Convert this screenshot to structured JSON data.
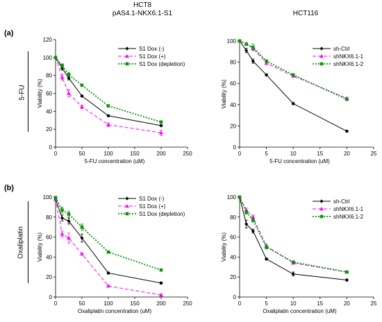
{
  "header": {
    "left_line1": "HCT8",
    "left_line2": "pAS4.1-NKX6.1-S1",
    "right": "HCT116"
  },
  "rows": [
    {
      "panel": "(a)",
      "label": "5-FU"
    },
    {
      "panel": "(b)",
      "label": "Oxaliplatin"
    }
  ],
  "chart_data": [
    {
      "type": "line",
      "id": "a-left",
      "xlabel": "5-FU concentration (uM)",
      "ylabel": "Viability (%)",
      "xlim": [
        0,
        250
      ],
      "xticks": [
        0,
        50,
        100,
        150,
        200,
        250
      ],
      "ylim": [
        0,
        120
      ],
      "yticks": [
        0,
        20,
        40,
        60,
        80,
        100,
        120
      ],
      "legend_position": "top-right",
      "series": [
        {
          "name": "S1 Dox (-)",
          "color": "#000000",
          "style": "solid",
          "marker": "diamond",
          "x": [
            0,
            12.5,
            25,
            50,
            100,
            200
          ],
          "y": [
            100,
            88,
            77,
            57,
            35,
            24
          ],
          "err": [
            1,
            2,
            2,
            1,
            1,
            1
          ]
        },
        {
          "name": "S1 Dox (+)",
          "color": "#ff00ff",
          "style": "dashed",
          "marker": "triangle",
          "x": [
            0,
            12.5,
            25,
            50,
            100,
            200
          ],
          "y": [
            100,
            78,
            60,
            45,
            25,
            16
          ],
          "err": [
            1,
            3,
            4,
            2,
            2,
            3
          ]
        },
        {
          "name": "S1 Dox (depletion)",
          "color": "#009900",
          "style": "dotted",
          "marker": "square",
          "x": [
            0,
            12.5,
            25,
            50,
            100,
            200
          ],
          "y": [
            100,
            91,
            81,
            69,
            46,
            28
          ],
          "err": [
            1,
            2,
            2,
            1,
            1,
            1
          ]
        }
      ]
    },
    {
      "type": "line",
      "id": "a-right",
      "xlabel": "5-FU concentration (uM)",
      "ylabel": "Viability (%)",
      "xlim": [
        0,
        25
      ],
      "xticks": [
        0,
        5,
        10,
        15,
        20,
        25
      ],
      "ylim": [
        0,
        100
      ],
      "yticks": [
        0,
        20,
        40,
        60,
        80,
        100
      ],
      "legend_position": "top-right",
      "series": [
        {
          "name": "sh-Ctrl",
          "color": "#000000",
          "style": "solid",
          "marker": "diamond",
          "x": [
            0,
            1.25,
            2.5,
            5,
            10,
            20
          ],
          "y": [
            100,
            91,
            81,
            68,
            41,
            15
          ],
          "err": [
            1,
            2,
            2,
            1,
            1,
            1
          ]
        },
        {
          "name": "shNKX6.1-1",
          "color": "#ff00ff",
          "style": "dashed",
          "marker": "triangle",
          "x": [
            0,
            1.25,
            2.5,
            5,
            10,
            20
          ],
          "y": [
            100,
            97,
            93,
            79,
            67,
            46
          ],
          "err": [
            1,
            1,
            2,
            1,
            1,
            1
          ]
        },
        {
          "name": "shNKX6.1-2",
          "color": "#009900",
          "style": "dotted",
          "marker": "square",
          "x": [
            0,
            1.25,
            2.5,
            5,
            10,
            20
          ],
          "y": [
            100,
            97,
            94,
            81,
            68,
            45
          ],
          "err": [
            1,
            1,
            3,
            1,
            1,
            1
          ]
        }
      ]
    },
    {
      "type": "line",
      "id": "b-left",
      "xlabel": "Oxaliplatin concentration (uM)",
      "ylabel": "Viability (%)",
      "xlim": [
        0,
        250
      ],
      "xticks": [
        0,
        50,
        100,
        150,
        200,
        250
      ],
      "ylim": [
        0,
        100
      ],
      "yticks": [
        0,
        20,
        40,
        60,
        80,
        100
      ],
      "legend_position": "top-right",
      "series": [
        {
          "name": "S1 Dox (-)",
          "color": "#000000",
          "style": "solid",
          "marker": "diamond",
          "x": [
            0,
            12.5,
            25,
            50,
            100,
            200
          ],
          "y": [
            98,
            79,
            76,
            59,
            24,
            14
          ],
          "err": [
            2,
            3,
            3,
            4,
            1,
            1
          ]
        },
        {
          "name": "S1 Dox (+)",
          "color": "#ff00ff",
          "style": "dashed",
          "marker": "triangle",
          "x": [
            0,
            12.5,
            25,
            50,
            100,
            200
          ],
          "y": [
            98,
            63,
            59,
            43,
            11,
            2
          ],
          "err": [
            2,
            3,
            5,
            1,
            1,
            1
          ]
        },
        {
          "name": "S1 Dox (depletion)",
          "color": "#009900",
          "style": "dotted",
          "marker": "square",
          "x": [
            0,
            12.5,
            25,
            50,
            100,
            200
          ],
          "y": [
            99,
            87,
            83,
            70,
            45,
            27
          ],
          "err": [
            2,
            3,
            3,
            3,
            1,
            1
          ]
        }
      ]
    },
    {
      "type": "line",
      "id": "b-right",
      "xlabel": "Oxaliplatin concentration (uM)",
      "ylabel": "Viability (%)",
      "xlim": [
        0,
        25
      ],
      "xticks": [
        0,
        5,
        10,
        15,
        20,
        25
      ],
      "ylim": [
        0,
        100
      ],
      "yticks": [
        0,
        20,
        40,
        60,
        80,
        100
      ],
      "legend_position": "top-right",
      "series": [
        {
          "name": "sh-Ctrl",
          "color": "#000000",
          "style": "solid",
          "marker": "diamond",
          "x": [
            0,
            1.25,
            2.5,
            5,
            10,
            20
          ],
          "y": [
            100,
            73,
            66,
            38,
            23,
            17
          ],
          "err": [
            1,
            4,
            2,
            1,
            2,
            1
          ]
        },
        {
          "name": "shNKX6.1-1",
          "color": "#ff00ff",
          "style": "dashed",
          "marker": "triangle",
          "x": [
            0,
            1.25,
            2.5,
            5,
            10,
            20
          ],
          "y": [
            100,
            87,
            80,
            51,
            34,
            25
          ],
          "err": [
            1,
            2,
            2,
            2,
            1,
            1
          ]
        },
        {
          "name": "shNKX6.1-2",
          "color": "#009900",
          "style": "dotted",
          "marker": "square",
          "x": [
            0,
            1.25,
            2.5,
            5,
            10,
            20
          ],
          "y": [
            100,
            85,
            77,
            50,
            35,
            25
          ],
          "err": [
            1,
            2,
            2,
            2,
            1,
            1
          ]
        }
      ]
    }
  ]
}
